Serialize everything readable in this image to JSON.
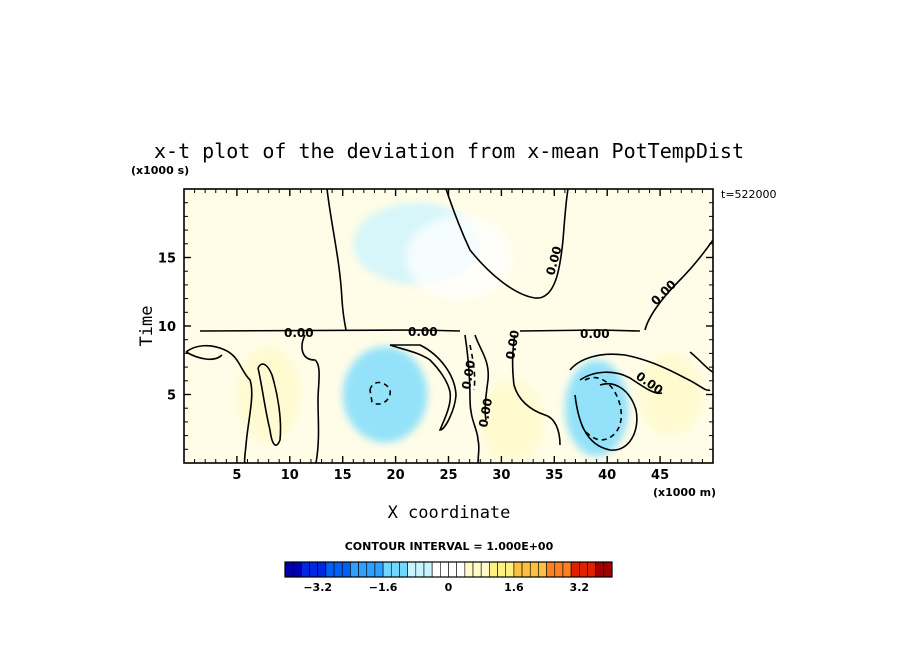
{
  "chart_data": {
    "type": "heatmap",
    "title": "x-t plot of the deviation from x-mean PotTempDist",
    "xlabel": "X coordinate",
    "ylabel": "Time",
    "x_units": "(x1000 m)",
    "y_units": "(x1000 s)",
    "time_stamp": "t=522000",
    "xlim": [
      0,
      50
    ],
    "ylim": [
      0,
      20
    ],
    "x_ticks": [
      5,
      10,
      15,
      20,
      25,
      30,
      35,
      40,
      45
    ],
    "y_ticks": [
      5,
      10,
      15
    ],
    "contour_labels": [
      "0.00",
      "0.00",
      "0.00",
      "0.00",
      "0.00",
      "0.00",
      "0.00",
      "0.00",
      "0.00"
    ],
    "contour_interval_text": "CONTOUR INTERVAL = 1.000E+00",
    "colorbar": {
      "min": -4,
      "max": 4,
      "step": 0.2,
      "tick_values": [
        -3.2,
        -1.6,
        0,
        1.6,
        3.2
      ],
      "tick_labels": [
        "−3.2",
        "−1.6",
        "0",
        "1.6",
        "3.2"
      ],
      "colors": [
        "#0000b0",
        "#0028e0",
        "#0060f8",
        "#30a0ff",
        "#70d8ff",
        "#c8f4ff",
        "#ffffff",
        "#fffac8",
        "#fff080",
        "#ffc040",
        "#ff8020",
        "#e02000",
        "#a00000"
      ]
    },
    "fields": [
      {
        "x": 19,
        "y": 5,
        "value": -1.2,
        "sx": 4,
        "sy": 3.5
      },
      {
        "x": 39,
        "y": 4,
        "value": -1.3,
        "sx": 3,
        "sy": 3.5
      },
      {
        "x": 22,
        "y": 16,
        "value": -0.4,
        "sx": 6,
        "sy": 3
      },
      {
        "x": 8,
        "y": 5,
        "value": 0.8,
        "sx": 3,
        "sy": 3.5
      },
      {
        "x": 31,
        "y": 3,
        "value": 0.5,
        "sx": 3,
        "sy": 3
      },
      {
        "x": 46,
        "y": 5,
        "value": 0.4,
        "sx": 3,
        "sy": 3
      },
      {
        "x": 26,
        "y": 15,
        "value": 0.3,
        "sx": 5,
        "sy": 3
      }
    ]
  }
}
